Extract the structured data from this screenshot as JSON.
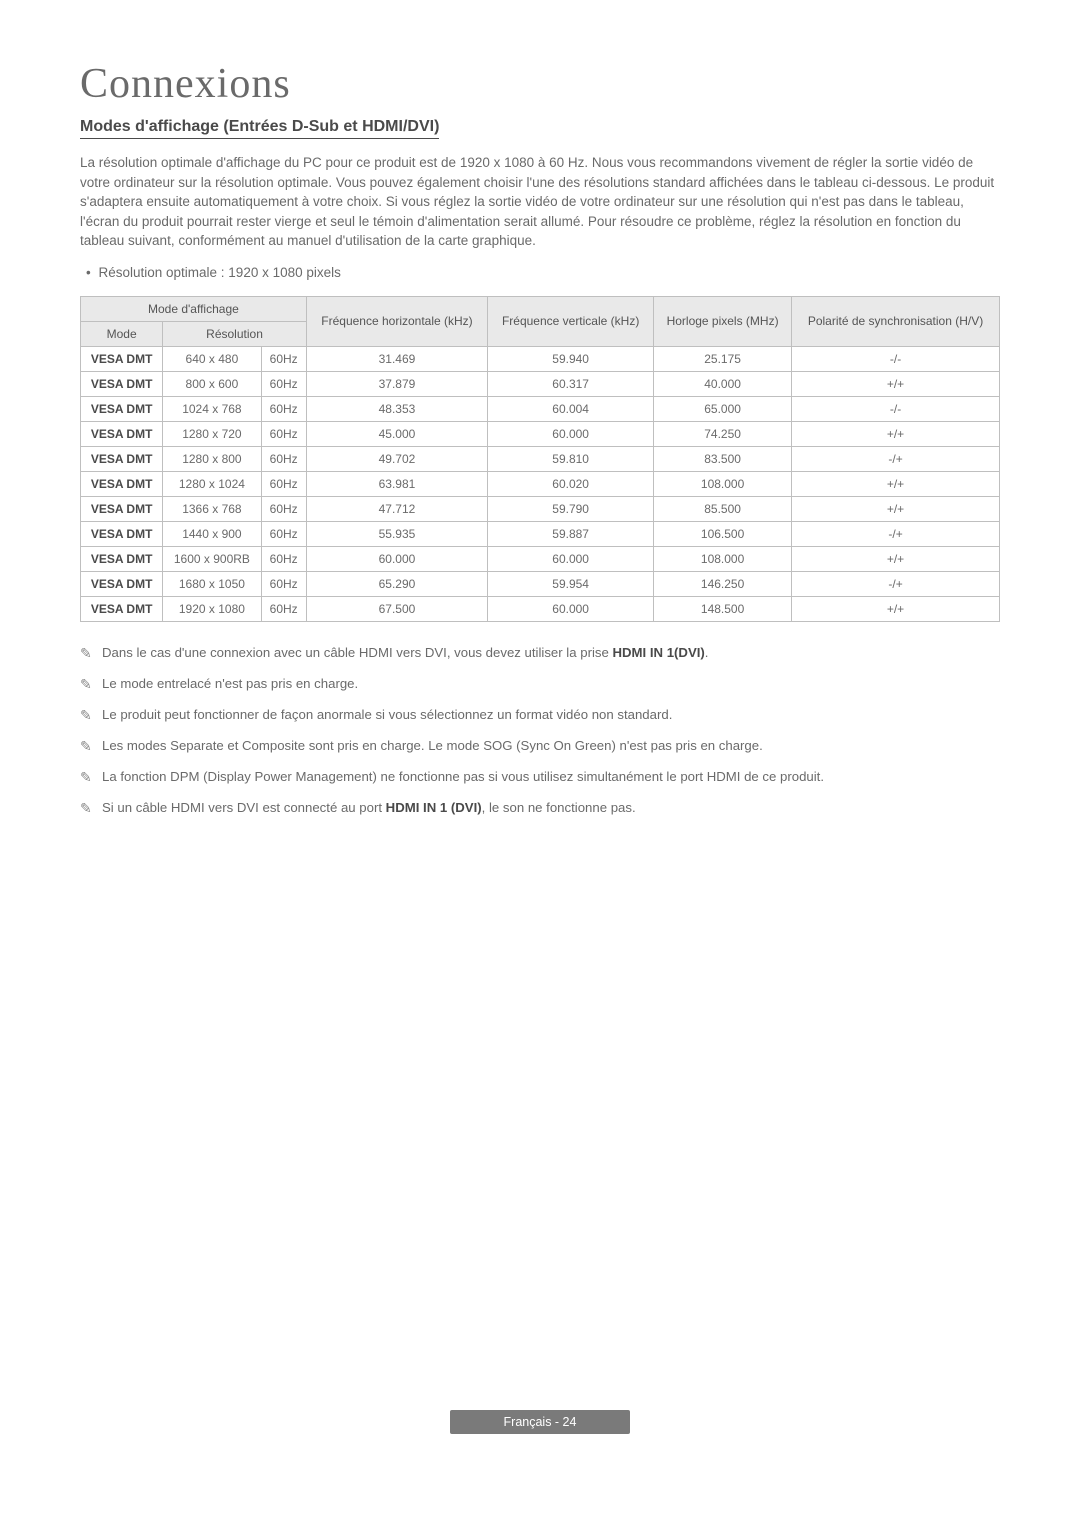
{
  "title": "Connexions",
  "subtitle": "Modes d'affichage (Entrées D-Sub et HDMI/DVI)",
  "intro": "La résolution optimale d'affichage du PC pour ce produit est de 1920 x 1080 à 60 Hz. Nous vous recommandons vivement de régler la sortie vidéo de votre ordinateur sur la résolution optimale. Vous pouvez également choisir l'une des résolutions standard affichées dans le tableau ci-dessous. Le produit s'adaptera ensuite automatiquement à votre choix. Si vous réglez la sortie vidéo de votre ordinateur sur une résolution qui n'est pas dans le tableau, l'écran du produit pourrait rester vierge et seul le témoin d'alimentation serait allumé.  Pour résoudre ce problème, réglez la résolution en fonction du tableau suivant, conformément au manuel d'utilisation de la carte graphique.",
  "bullet": "Résolution optimale : 1920 x 1080 pixels",
  "tableHeaders": {
    "group1": "Mode d'affichage",
    "mode": "Mode",
    "resolution": "Résolution",
    "freqH": "Fréquence horizontale (kHz)",
    "freqV": "Fréquence verticale (kHz)",
    "pixelClock": "Horloge pixels (MHz)",
    "polarity": "Polarité de synchronisation (H/V)"
  },
  "rows": [
    {
      "mode": "VESA DMT",
      "res": "640 x 480",
      "hz": "60Hz",
      "fh": "31.469",
      "fv": "59.940",
      "pc": "25.175",
      "pol": "-/-"
    },
    {
      "mode": "VESA DMT",
      "res": "800 x 600",
      "hz": "60Hz",
      "fh": "37.879",
      "fv": "60.317",
      "pc": "40.000",
      "pol": "+/+"
    },
    {
      "mode": "VESA DMT",
      "res": "1024 x 768",
      "hz": "60Hz",
      "fh": "48.353",
      "fv": "60.004",
      "pc": "65.000",
      "pol": "-/-"
    },
    {
      "mode": "VESA DMT",
      "res": "1280 x 720",
      "hz": "60Hz",
      "fh": "45.000",
      "fv": "60.000",
      "pc": "74.250",
      "pol": "+/+"
    },
    {
      "mode": "VESA DMT",
      "res": "1280 x 800",
      "hz": "60Hz",
      "fh": "49.702",
      "fv": "59.810",
      "pc": "83.500",
      "pol": "-/+"
    },
    {
      "mode": "VESA DMT",
      "res": "1280 x 1024",
      "hz": "60Hz",
      "fh": "63.981",
      "fv": "60.020",
      "pc": "108.000",
      "pol": "+/+"
    },
    {
      "mode": "VESA DMT",
      "res": "1366 x 768",
      "hz": "60Hz",
      "fh": "47.712",
      "fv": "59.790",
      "pc": "85.500",
      "pol": "+/+"
    },
    {
      "mode": "VESA DMT",
      "res": "1440 x 900",
      "hz": "60Hz",
      "fh": "55.935",
      "fv": "59.887",
      "pc": "106.500",
      "pol": "-/+"
    },
    {
      "mode": "VESA DMT",
      "res": "1600 x 900RB",
      "hz": "60Hz",
      "fh": "60.000",
      "fv": "60.000",
      "pc": "108.000",
      "pol": "+/+"
    },
    {
      "mode": "VESA DMT",
      "res": "1680 x 1050",
      "hz": "60Hz",
      "fh": "65.290",
      "fv": "59.954",
      "pc": "146.250",
      "pol": "-/+"
    },
    {
      "mode": "VESA DMT",
      "res": "1920 x 1080",
      "hz": "60Hz",
      "fh": "67.500",
      "fv": "60.000",
      "pc": "148.500",
      "pol": "+/+"
    }
  ],
  "notes": {
    "n1_pre": "Dans le cas d'une connexion avec un câble HDMI vers DVI, vous devez utiliser la prise ",
    "n1_bold": "HDMI IN 1(DVI)",
    "n1_post": ".",
    "n2": "Le mode entrelacé n'est pas pris en charge.",
    "n3": "Le produit peut fonctionner de façon anormale si vous sélectionnez un format vidéo non standard.",
    "n4": "Les modes Separate et Composite sont pris en charge. Le mode SOG (Sync On Green) n'est pas pris en charge.",
    "n5": "La fonction DPM (Display Power Management) ne fonctionne pas si vous utilisez simultanément le port HDMI de ce produit.",
    "n6_pre": "Si un câble HDMI vers DVI est connecté au port ",
    "n6_bold": "HDMI IN 1 (DVI)",
    "n6_post": ", le son ne fonctionne pas."
  },
  "footer": "Français - 24"
}
